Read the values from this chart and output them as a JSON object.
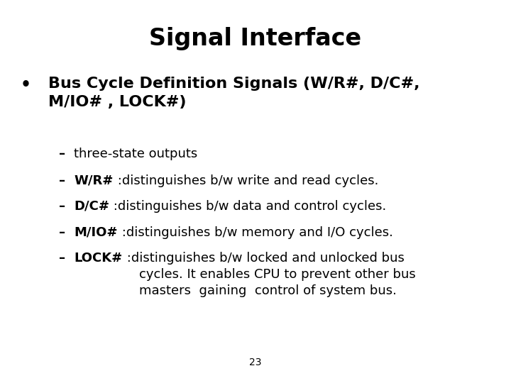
{
  "title": "Signal Interface",
  "title_fontsize": 24,
  "background_color": "#ffffff",
  "text_color": "#000000",
  "page_number": "23",
  "page_number_fontsize": 10,
  "bullet_fontsize": 16,
  "sub_fontsize": 13,
  "lines": [
    {
      "type": "title",
      "text": "Signal Interface"
    },
    {
      "type": "bullet",
      "bold": "Bus Cycle Definition Signals (W/R#, D/C#,\nM/IO# , LOCK#)"
    },
    {
      "type": "sub",
      "dash": "– ",
      "bold": "",
      "normal": "three-state outputs"
    },
    {
      "type": "sub",
      "dash": "– ",
      "bold": "W/R#",
      "normal": " :distinguishes b/w write and read cycles."
    },
    {
      "type": "sub",
      "dash": "– ",
      "bold": "D/C#",
      "normal": " :distinguishes b/w data and control cycles."
    },
    {
      "type": "sub",
      "dash": "–  ",
      "bold": "M/IO#",
      "normal": " :distinguishes b/w memory and I/O cycles."
    },
    {
      "type": "sub",
      "dash": "– ",
      "bold": "LOCK#",
      "normal": " :distinguishes b/w locked and unlocked bus\n  cycles. It enables CPU to prevent other bus\n  masters  gaining  control of system bus."
    }
  ]
}
